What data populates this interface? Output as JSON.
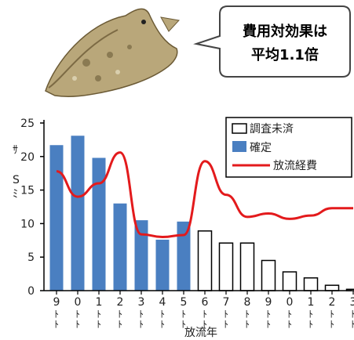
{
  "callout": {
    "line1": "費用対効果は",
    "line2": "平均1.1倍"
  },
  "fish_icon": "flatfish-illustration",
  "chart_data": {
    "type": "bar",
    "xlabel": "放流年",
    "ylabel_chars": [
      "ｻ",
      "S",
      "ﾐ"
    ],
    "ylim": [
      0,
      25
    ],
    "yticks": [
      0,
      5,
      10,
      15,
      20,
      25
    ],
    "x_tick_digits": [
      "9",
      "0",
      "1",
      "2",
      "3",
      "4",
      "5",
      "6",
      "7",
      "8",
      "9",
      "0",
      "1",
      "2",
      "3"
    ],
    "x_tick_marks": [
      "ﾄ",
      "ﾄ",
      "ﾄ",
      "ﾄ",
      "ﾄ",
      "ﾄ",
      "ﾄ",
      "ﾄ",
      "ﾄ",
      "ﾄ",
      "ﾄ",
      "ﾄ",
      "ﾄ",
      "ﾄ",
      "ﾄ"
    ],
    "series": [
      {
        "name": "確定",
        "kind": "bar",
        "color": "#4a7fc1",
        "values": [
          21.7,
          23.1,
          19.8,
          13.0,
          10.5,
          7.6,
          10.3,
          null,
          null,
          null,
          null,
          null,
          null,
          null,
          null
        ]
      },
      {
        "name": "調査未済",
        "kind": "bar",
        "color": "#ffffff",
        "values": [
          null,
          null,
          null,
          null,
          null,
          null,
          null,
          8.9,
          7.1,
          7.1,
          4.5,
          2.8,
          1.9,
          0.8,
          0.2
        ]
      },
      {
        "name": "放流経費",
        "kind": "line",
        "color": "#e31a1c",
        "values": [
          17.8,
          14.0,
          16.0,
          20.6,
          8.4,
          8.0,
          8.3,
          19.3,
          14.3,
          11.0,
          11.5,
          10.7,
          11.2,
          12.3,
          12.3
        ]
      }
    ],
    "legend": {
      "position": "top-right",
      "items": [
        "調査未済",
        "確定",
        "放流経費"
      ]
    },
    "grid": false
  }
}
